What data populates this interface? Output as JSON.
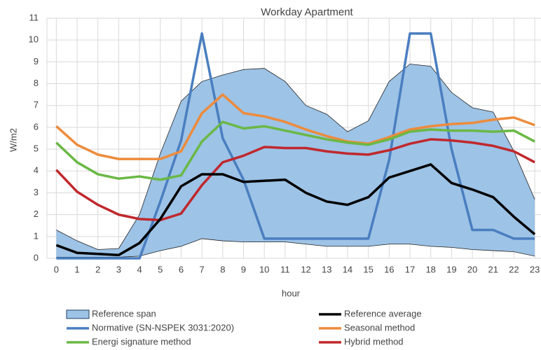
{
  "chart_data": {
    "type": "line",
    "title": "Workday Apartment",
    "x_label": "hour",
    "y_label": "W/m2",
    "x": [
      0,
      1,
      2,
      3,
      4,
      5,
      6,
      7,
      8,
      9,
      10,
      11,
      12,
      13,
      14,
      15,
      16,
      17,
      18,
      19,
      20,
      21,
      22,
      23
    ],
    "xlim": [
      -0.45,
      23.3
    ],
    "xticks": [
      0,
      1,
      2,
      3,
      4,
      5,
      6,
      7,
      8,
      9,
      10,
      11,
      12,
      13,
      14,
      15,
      16,
      17,
      18,
      19,
      20,
      21,
      22,
      23
    ],
    "ylim": [
      0,
      11
    ],
    "yticks": [
      0,
      1,
      2,
      3,
      4,
      5,
      6,
      7,
      8,
      9,
      10,
      11
    ],
    "grid": true,
    "legend": "bottom",
    "band": {
      "name": "Reference span",
      "color": "#9dc3e6",
      "upper": [
        1.3,
        0.8,
        0.4,
        0.45,
        2.0,
        4.8,
        7.2,
        8.1,
        8.4,
        8.65,
        8.7,
        8.1,
        7.0,
        6.6,
        5.8,
        6.3,
        8.1,
        8.9,
        8.8,
        7.6,
        6.9,
        6.7,
        4.9,
        2.7
      ],
      "lower": [
        0.05,
        0.05,
        0.05,
        0.05,
        0.1,
        0.35,
        0.55,
        0.9,
        0.8,
        0.75,
        0.75,
        0.75,
        0.65,
        0.55,
        0.55,
        0.55,
        0.65,
        0.65,
        0.55,
        0.5,
        0.4,
        0.35,
        0.3,
        0.1
      ]
    },
    "series": [
      {
        "name": "Reference average",
        "color": "#000000",
        "values": [
          0.6,
          0.25,
          0.2,
          0.15,
          0.7,
          1.8,
          3.3,
          3.85,
          3.85,
          3.5,
          3.55,
          3.6,
          3.0,
          2.6,
          2.45,
          2.8,
          3.7,
          4.0,
          4.3,
          3.45,
          3.15,
          2.8,
          1.9,
          1.1
        ]
      },
      {
        "name": "Normative (SN-NSPEK 3031:2020)",
        "color": "#4a7ec0",
        "values": [
          0,
          0,
          0,
          0,
          0,
          2.6,
          5.4,
          10.3,
          5.5,
          3.6,
          0.9,
          0.9,
          0.9,
          0.9,
          0.9,
          0.9,
          4.5,
          10.3,
          10.3,
          5.0,
          1.3,
          1.3,
          0.9,
          0.9
        ]
      },
      {
        "name": "Seasonal method",
        "color": "#ed8b3c",
        "values": [
          6.05,
          5.2,
          4.75,
          4.55,
          4.55,
          4.55,
          4.9,
          6.65,
          7.5,
          6.65,
          6.5,
          6.25,
          5.9,
          5.6,
          5.35,
          5.25,
          5.55,
          5.9,
          6.05,
          6.15,
          6.2,
          6.35,
          6.45,
          6.1
        ]
      },
      {
        "name": "Energi signature method",
        "color": "#6ab845",
        "values": [
          5.3,
          4.4,
          3.85,
          3.65,
          3.75,
          3.6,
          3.8,
          5.35,
          6.25,
          5.95,
          6.05,
          5.85,
          5.65,
          5.45,
          5.3,
          5.2,
          5.45,
          5.8,
          5.9,
          5.85,
          5.85,
          5.8,
          5.85,
          5.35
        ]
      },
      {
        "name": "Hybrid method",
        "color": "#c0282d",
        "values": [
          4.05,
          3.05,
          2.45,
          2.0,
          1.8,
          1.75,
          2.05,
          3.35,
          4.4,
          4.7,
          5.1,
          5.05,
          5.05,
          4.9,
          4.8,
          4.75,
          4.95,
          5.25,
          5.45,
          5.4,
          5.3,
          5.15,
          4.9,
          4.4
        ]
      }
    ]
  }
}
